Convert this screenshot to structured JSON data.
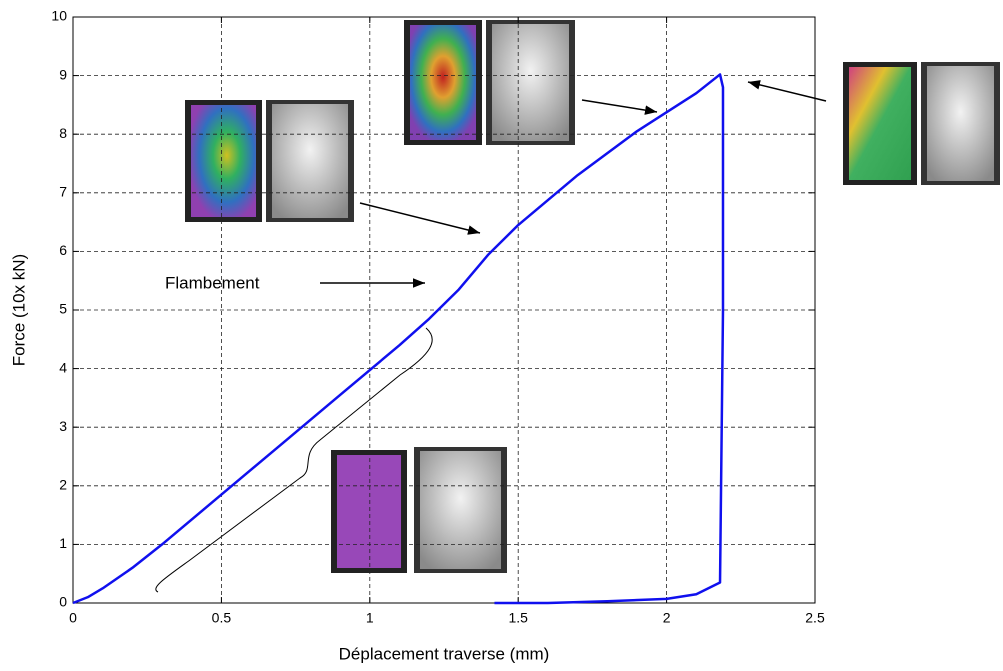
{
  "chart_data": {
    "type": "line",
    "xlabel": "Déplacement traverse (mm)",
    "ylabel": "Force (10x kN)",
    "annotation": "Flambement",
    "x": [
      0,
      0.05,
      0.1,
      0.2,
      0.3,
      0.5,
      0.7,
      0.9,
      1.1,
      1.2,
      1.3,
      1.4,
      1.5,
      1.7,
      1.9,
      2.1,
      2.18,
      2.19,
      2.19,
      2.18,
      2.1,
      2.0,
      1.8,
      1.6,
      1.42
    ],
    "values": [
      0,
      0.1,
      0.25,
      0.6,
      1.0,
      1.85,
      2.7,
      3.55,
      4.4,
      4.85,
      5.35,
      5.95,
      6.45,
      7.3,
      8.05,
      8.7,
      9.02,
      8.8,
      5,
      0.35,
      0.15,
      0.07,
      0.03,
      0,
      0
    ],
    "color": "#1010ee",
    "xlim": [
      0,
      2.5
    ],
    "xticks": [
      0,
      0.5,
      1,
      1.5,
      2,
      2.5
    ],
    "ylim": [
      0,
      10
    ],
    "yticks": [
      0,
      1,
      2,
      3,
      4,
      5,
      6,
      7,
      8,
      9,
      10
    ],
    "grid": true
  }
}
